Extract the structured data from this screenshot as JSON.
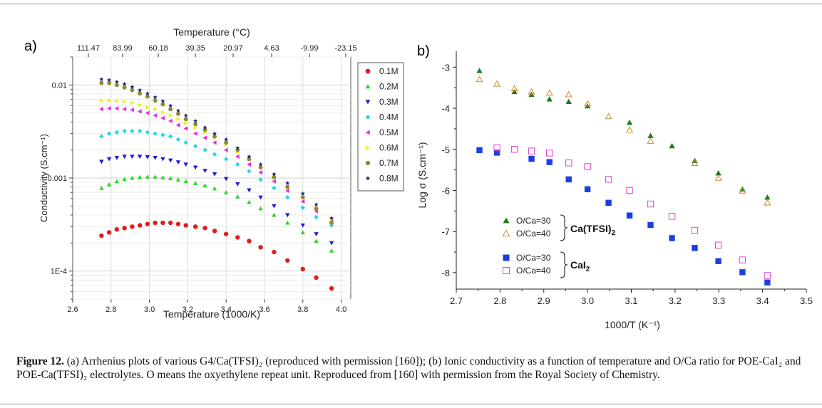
{
  "caption": {
    "label": "Figure 12.",
    "text": " (a) Arrhenius plots of various G4/Ca(TFSI)₂ (reproduced with permission [160]); (b) Ionic conductivity as a function of temperature and O/Ca ratio for POE-CaI₂ and POE-Ca(TFSI)₂ electrolytes. O means the oxyethylene repeat unit. Reproduced from [160] with permission from the Royal Society of Chemistry."
  },
  "chart_data": [
    {
      "panel": "a)",
      "type": "scatter",
      "xlabel": "Temperature (1000/K)",
      "ylabel": "Conductivity (S.cm⁻¹)",
      "x2label": "Temperature (°C)",
      "xlim": [
        2.6,
        4.05
      ],
      "ylim": [
        5e-05,
        0.02
      ],
      "yscale": "log",
      "x_ticks": [
        "2.6",
        "2.8",
        "3.0",
        "3.2",
        "3.4",
        "3.6",
        "3.8",
        "4.0"
      ],
      "y_ticks": [
        "1E-4",
        "0.001",
        "0.01"
      ],
      "x2_ticks": [
        "111.47",
        "83.99",
        "60.18",
        "39.35",
        "20.97",
        "4.63",
        "-9.99",
        "-23.15"
      ],
      "grid": true,
      "legend": "right",
      "series": [
        {
          "name": "0.1M",
          "marker": "circle",
          "color": "#e31a1c",
          "x": [
            2.75,
            2.79,
            2.83,
            2.87,
            2.91,
            2.95,
            2.99,
            3.03,
            3.07,
            3.11,
            3.15,
            3.19,
            3.24,
            3.29,
            3.34,
            3.4,
            3.46,
            3.52,
            3.58,
            3.65,
            3.72,
            3.8,
            3.87,
            3.95
          ],
          "y": [
            0.00024,
            0.00026,
            0.00028,
            0.00029,
            0.0003,
            0.00031,
            0.00032,
            0.00033,
            0.00033,
            0.00033,
            0.00032,
            0.00031,
            0.0003,
            0.00029,
            0.00027,
            0.00025,
            0.00023,
            0.00021,
            0.00018,
            0.00016,
            0.00013,
            0.000105,
            8.5e-05,
            6.5e-05
          ]
        },
        {
          "name": "0.2M",
          "marker": "triangle-up",
          "color": "#2bd82b",
          "x": [
            2.75,
            2.79,
            2.83,
            2.87,
            2.91,
            2.95,
            2.99,
            3.03,
            3.07,
            3.11,
            3.15,
            3.19,
            3.24,
            3.29,
            3.34,
            3.4,
            3.46,
            3.52,
            3.58,
            3.65,
            3.72,
            3.8,
            3.87,
            3.95
          ],
          "y": [
            0.00078,
            0.00085,
            0.00092,
            0.00097,
            0.001,
            0.00102,
            0.00103,
            0.00103,
            0.00101,
            0.00099,
            0.00096,
            0.00092,
            0.00088,
            0.00083,
            0.00077,
            0.0007,
            0.00063,
            0.00055,
            0.00047,
            0.0004,
            0.00033,
            0.00026,
            0.00021,
            0.000165
          ]
        },
        {
          "name": "0.3M",
          "marker": "triangle-down",
          "color": "#1b1bd9",
          "x": [
            2.75,
            2.79,
            2.83,
            2.87,
            2.91,
            2.95,
            2.99,
            3.03,
            3.07,
            3.11,
            3.15,
            3.19,
            3.24,
            3.29,
            3.34,
            3.4,
            3.46,
            3.52,
            3.58,
            3.65,
            3.72,
            3.8,
            3.87,
            3.95
          ],
          "y": [
            0.0015,
            0.0016,
            0.00165,
            0.0017,
            0.0017,
            0.0017,
            0.00168,
            0.00165,
            0.0016,
            0.00155,
            0.00148,
            0.0014,
            0.0013,
            0.0012,
            0.0011,
            0.00098,
            0.00086,
            0.00074,
            0.00062,
            0.0005,
            0.0004,
            0.00031,
            0.00025,
            0.0002
          ]
        },
        {
          "name": "0.4M",
          "marker": "diamond",
          "color": "#22d8e8",
          "x": [
            2.75,
            2.79,
            2.83,
            2.87,
            2.91,
            2.95,
            2.99,
            3.03,
            3.07,
            3.11,
            3.15,
            3.19,
            3.24,
            3.29,
            3.34,
            3.4,
            3.46,
            3.52,
            3.58,
            3.65,
            3.72,
            3.8,
            3.87,
            3.95
          ],
          "y": [
            0.0028,
            0.003,
            0.0031,
            0.0032,
            0.0032,
            0.0032,
            0.0031,
            0.003,
            0.0029,
            0.0028,
            0.0026,
            0.0024,
            0.0022,
            0.002,
            0.0018,
            0.0016,
            0.0014,
            0.00118,
            0.00096,
            0.00078,
            0.00062,
            0.00048,
            0.00038,
            0.00031
          ]
        },
        {
          "name": "0.5M",
          "marker": "triangle-left",
          "color": "#e82fd8",
          "x": [
            2.75,
            2.79,
            2.83,
            2.87,
            2.91,
            2.95,
            2.99,
            3.03,
            3.07,
            3.11,
            3.15,
            3.19,
            3.24,
            3.29,
            3.34,
            3.4,
            3.46,
            3.52,
            3.58,
            3.65,
            3.72,
            3.8,
            3.87,
            3.95
          ],
          "y": [
            0.0055,
            0.0056,
            0.0056,
            0.0055,
            0.0054,
            0.0052,
            0.005,
            0.0047,
            0.0044,
            0.0041,
            0.0037,
            0.0034,
            0.003,
            0.0027,
            0.0024,
            0.002,
            0.0017,
            0.0014,
            0.00115,
            0.00092,
            0.00073,
            0.00056,
            0.00044,
            0.00034
          ]
        },
        {
          "name": "0.6M",
          "marker": "triangle-right",
          "color": "#f0f020",
          "x": [
            2.75,
            2.79,
            2.83,
            2.87,
            2.91,
            2.95,
            2.99,
            3.03,
            3.07,
            3.11,
            3.15,
            3.19,
            3.24,
            3.29,
            3.34,
            3.4,
            3.46,
            3.52,
            3.58,
            3.65,
            3.72,
            3.8,
            3.87,
            3.95
          ],
          "y": [
            0.0068,
            0.0068,
            0.0067,
            0.0066,
            0.0064,
            0.0061,
            0.0058,
            0.0055,
            0.0051,
            0.0047,
            0.0043,
            0.0039,
            0.0035,
            0.0031,
            0.0027,
            0.0023,
            0.0019,
            0.0016,
            0.0013,
            0.001,
            0.0008,
            0.00062,
            0.00048,
            0.00036
          ]
        },
        {
          "name": "0.7M",
          "marker": "hexagon",
          "color": "#8f8a2a",
          "x": [
            2.75,
            2.79,
            2.83,
            2.87,
            2.91,
            2.95,
            2.99,
            3.03,
            3.07,
            3.11,
            3.15,
            3.19,
            3.24,
            3.29,
            3.34,
            3.4,
            3.46,
            3.52,
            3.58,
            3.65,
            3.72,
            3.8,
            3.87,
            3.95
          ],
          "y": [
            0.0105,
            0.0105,
            0.01,
            0.0094,
            0.0088,
            0.0081,
            0.0075,
            0.0068,
            0.0062,
            0.0055,
            0.0049,
            0.0043,
            0.0038,
            0.0033,
            0.0028,
            0.0024,
            0.002,
            0.0016,
            0.0013,
            0.00102,
            0.0008,
            0.00062,
            0.00047,
            0.00033
          ]
        },
        {
          "name": "0.8M",
          "marker": "star",
          "color": "#1a237e",
          "x": [
            2.75,
            2.79,
            2.83,
            2.87,
            2.91,
            2.95,
            2.99,
            3.03,
            3.07,
            3.11,
            3.15,
            3.19,
            3.24,
            3.29,
            3.34,
            3.4,
            3.46,
            3.52,
            3.58,
            3.65,
            3.72,
            3.8,
            3.87,
            3.95
          ],
          "y": [
            0.0115,
            0.0113,
            0.0108,
            0.0102,
            0.0095,
            0.0088,
            0.0081,
            0.0074,
            0.0067,
            0.006,
            0.0053,
            0.0047,
            0.0041,
            0.0035,
            0.003,
            0.0026,
            0.0021,
            0.0017,
            0.0014,
            0.0011,
            0.00088,
            0.00068,
            0.00052,
            0.00037
          ]
        }
      ]
    },
    {
      "panel": "b)",
      "type": "scatter",
      "xlabel": "1000/T (K⁻¹)",
      "ylabel": "Log σ (S.cm⁻¹)",
      "xlim": [
        2.7,
        3.5
      ],
      "ylim": [
        -8.4,
        -2.7
      ],
      "x_ticks": [
        "2.7",
        "2.8",
        "2.9",
        "3.0",
        "3.1",
        "3.2",
        "3.3",
        "3.4",
        "3.5"
      ],
      "y_ticks": [
        "-3",
        "-4",
        "-5",
        "-6",
        "-7",
        "-8"
      ],
      "grid": false,
      "legend": "bottom-left",
      "group_labels": [
        "Ca(TFSI)",
        "CaI"
      ],
      "series": [
        {
          "name": "O/Ca=30",
          "group": "Ca(TFSI)2",
          "marker": "triangle-filled",
          "color": "#1f7a1f",
          "x": [
            2.753,
            2.833,
            2.872,
            2.913,
            2.957,
            3.0,
            3.096,
            3.144,
            3.193,
            3.245,
            3.299,
            3.354,
            3.411
          ],
          "y": [
            -3.09,
            -3.6,
            -3.67,
            -3.78,
            -3.84,
            -3.95,
            -4.35,
            -4.67,
            -4.92,
            -5.28,
            -5.58,
            -5.97,
            -6.17
          ]
        },
        {
          "name": "O/Ca=40",
          "group": "Ca(TFSI)2",
          "marker": "triangle-open",
          "color": "#d08a2a",
          "x": [
            2.753,
            2.793,
            2.833,
            2.872,
            2.913,
            2.957,
            3.0,
            3.048,
            3.096,
            3.144,
            3.245,
            3.299,
            3.354,
            3.411
          ],
          "y": [
            -3.3,
            -3.41,
            -3.52,
            -3.6,
            -3.63,
            -3.67,
            -3.89,
            -4.2,
            -4.53,
            -4.8,
            -5.34,
            -5.7,
            -6.01,
            -6.3
          ]
        },
        {
          "name": "O/Ca=30",
          "group": "CaI2",
          "marker": "square-filled",
          "color": "#1a3fe0",
          "x": [
            2.753,
            2.793,
            2.872,
            2.913,
            2.957,
            3.0,
            3.048,
            3.096,
            3.144,
            3.193,
            3.245,
            3.299,
            3.354,
            3.411
          ],
          "y": [
            -5.02,
            -5.08,
            -5.23,
            -5.31,
            -5.73,
            -5.97,
            -6.3,
            -6.61,
            -6.84,
            -7.16,
            -7.4,
            -7.72,
            -7.99,
            -8.24
          ]
        },
        {
          "name": "O/Ca=40",
          "group": "CaI2",
          "marker": "square-open",
          "color": "#e040d0",
          "x": [
            2.793,
            2.833,
            2.872,
            2.913,
            2.957,
            3.0,
            3.048,
            3.096,
            3.144,
            3.193,
            3.245,
            3.299,
            3.354,
            3.411
          ],
          "y": [
            -4.96,
            -5.0,
            -5.04,
            -5.09,
            -5.33,
            -5.42,
            -5.73,
            -6.0,
            -6.33,
            -6.63,
            -6.97,
            -7.33,
            -7.69,
            -8.07
          ]
        }
      ]
    }
  ]
}
